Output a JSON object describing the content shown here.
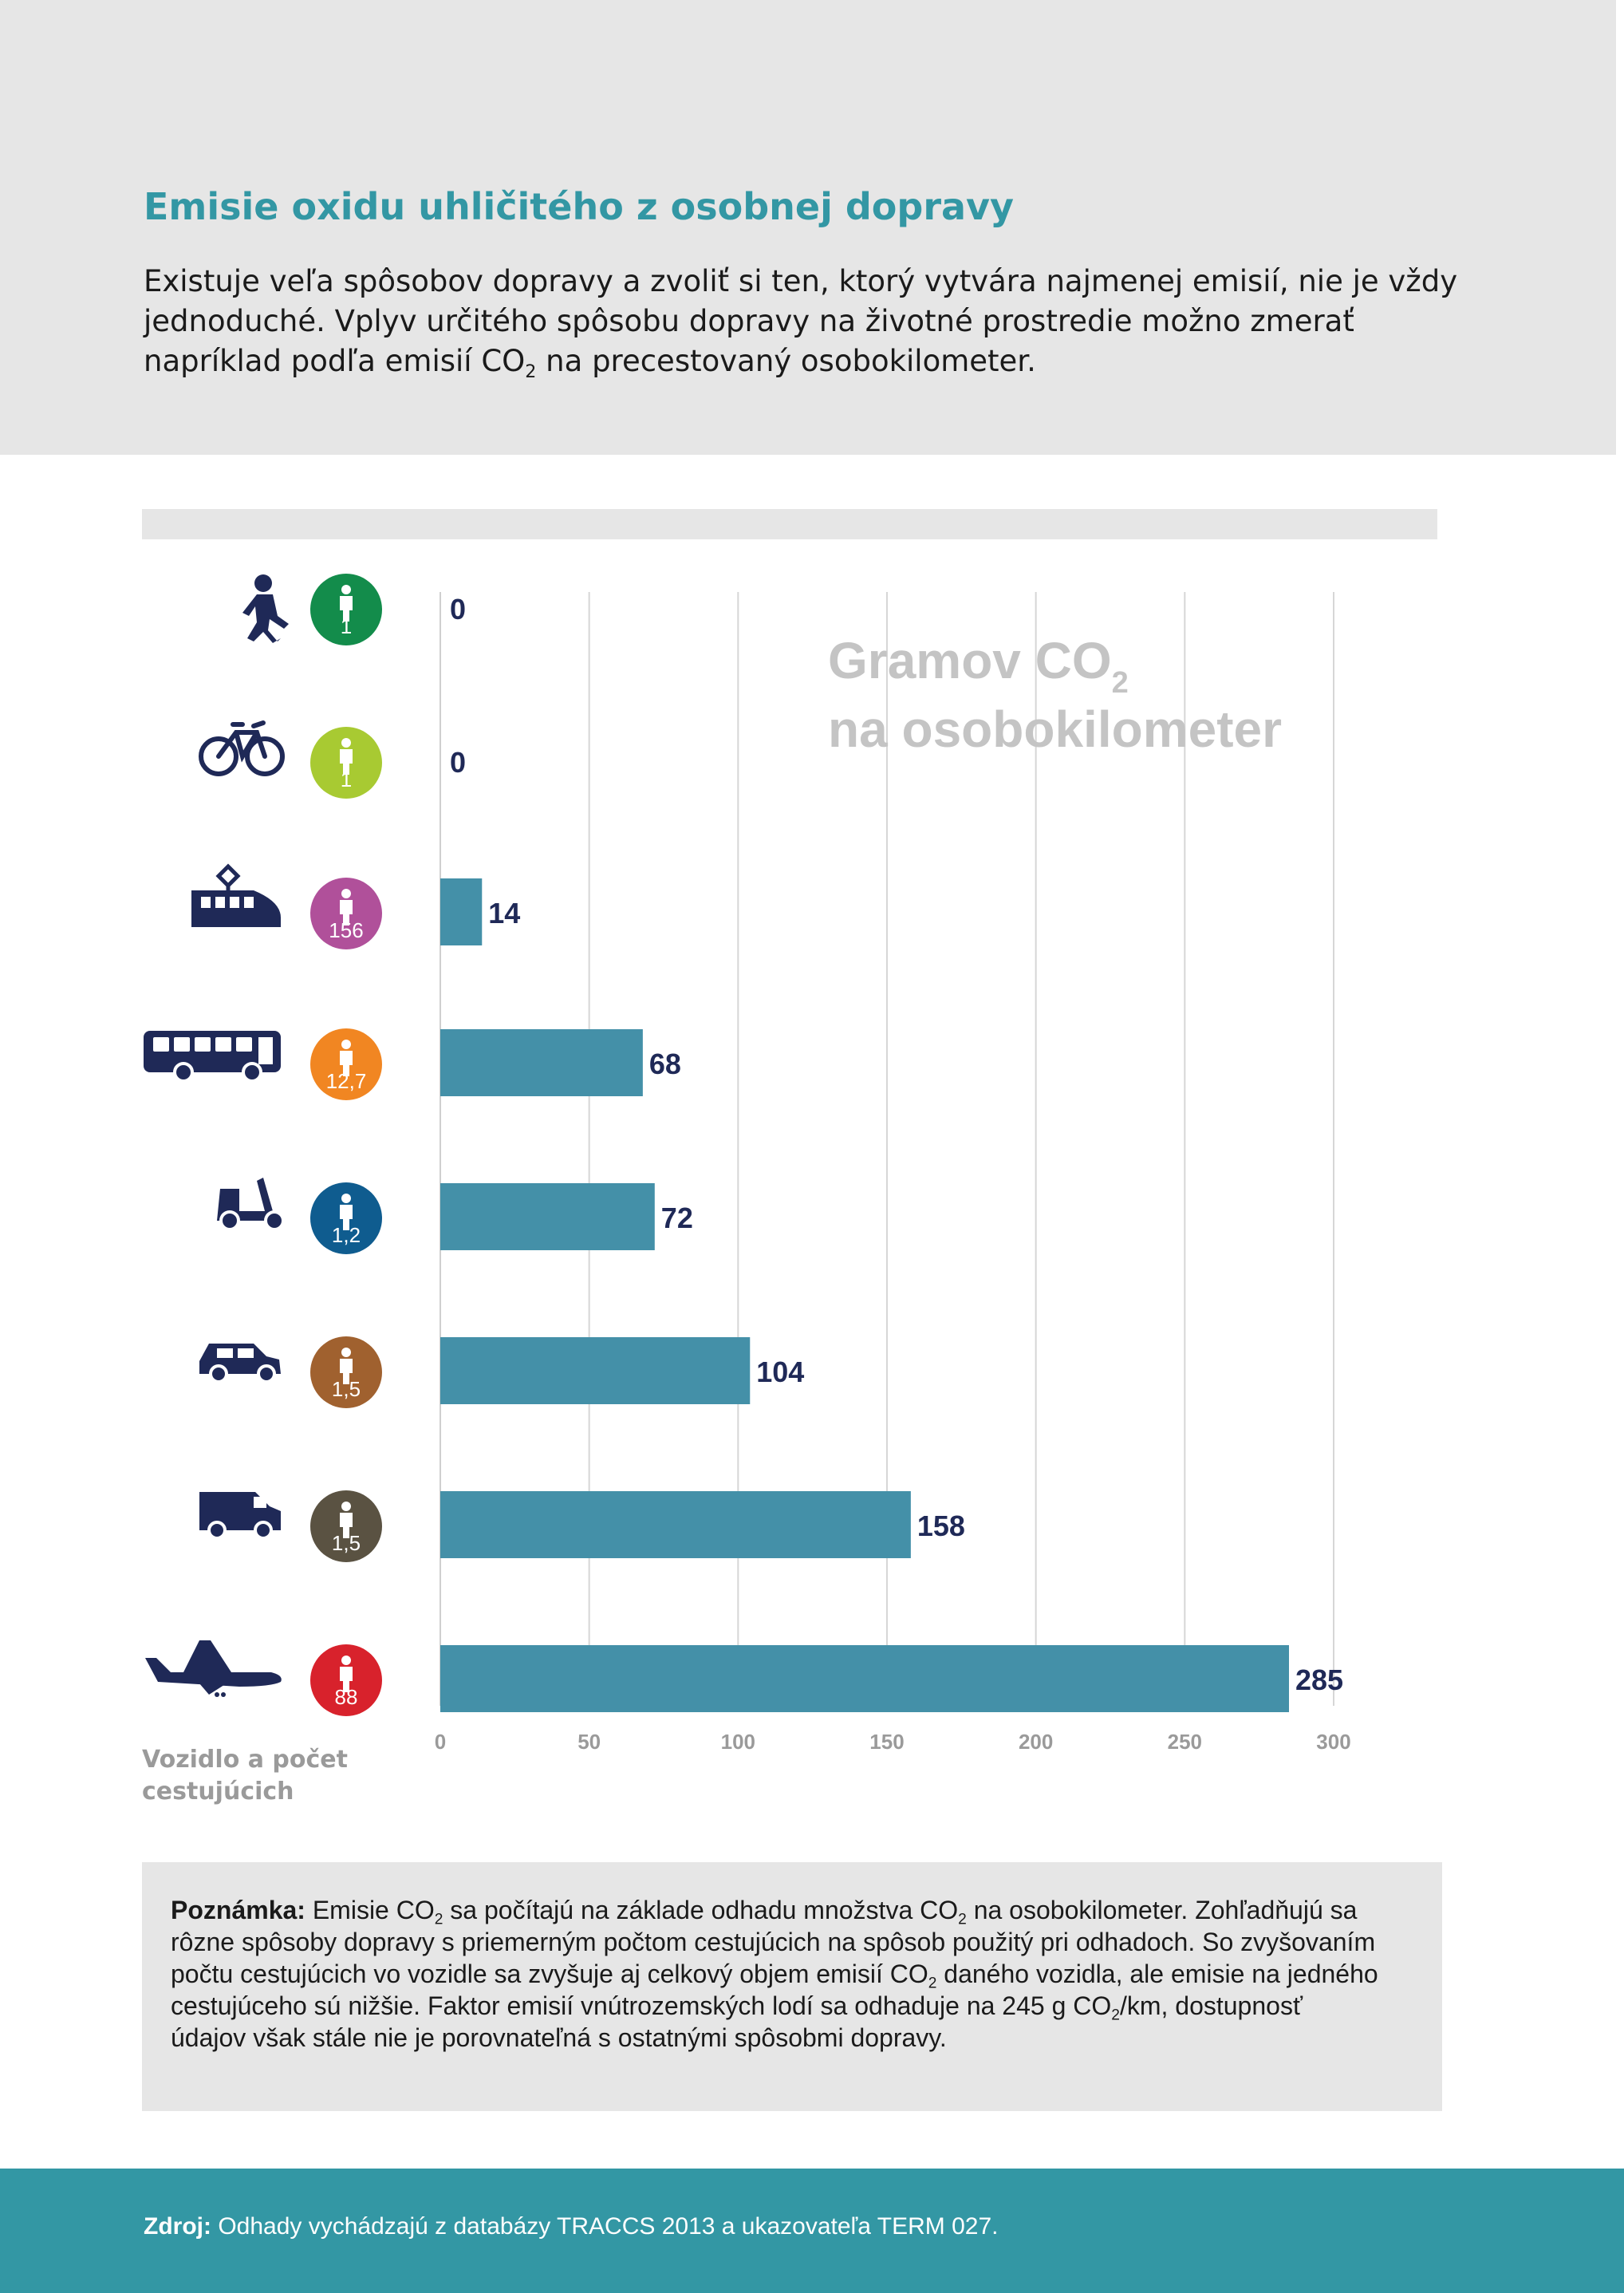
{
  "header": {
    "title": "Emisie oxidu uhličitého z osobnej dopravy",
    "intro_part1": "Existuje veľa spôsobov dopravy a zvoliť si ten, ktorý vytvára najmenej emisií, nie je vždy jednoduché. Vplyv určitého spôsobu dopravy na životné prostredie možno zmerať napríklad podľa emisií CO",
    "intro_sub": "2",
    "intro_part2": " na precestovaný osobokilometer."
  },
  "chart_data": {
    "type": "bar",
    "orientation": "horizontal",
    "title_line1": "Gramov CO",
    "title_sub": "2",
    "title_line2": "na osobokilometer",
    "xlabel": "",
    "ylabel": "Vozidlo a počet cestujúcich",
    "xlim": [
      0,
      300
    ],
    "xticks": [
      0,
      50,
      100,
      150,
      200,
      250,
      300
    ],
    "grid": true,
    "bar_color": "#4490a8",
    "categories": [
      {
        "icon": "walking-person-icon",
        "passengers": "1",
        "badge_color": "#138c4b",
        "value": 0
      },
      {
        "icon": "bicycle-icon",
        "passengers": "1",
        "badge_color": "#a8ca32",
        "value": 0
      },
      {
        "icon": "tram-icon",
        "passengers": "156",
        "badge_color": "#b0509a",
        "value": 14
      },
      {
        "icon": "bus-icon",
        "passengers": "12,7",
        "badge_color": "#f18622",
        "value": 68
      },
      {
        "icon": "scooter-icon",
        "passengers": "1,2",
        "badge_color": "#0f5c8f",
        "value": 72
      },
      {
        "icon": "car-icon",
        "passengers": "1,5",
        "badge_color": "#a0612f",
        "value": 104
      },
      {
        "icon": "van-icon",
        "passengers": "1,5",
        "badge_color": "#5a5242",
        "value": 158
      },
      {
        "icon": "airplane-icon",
        "passengers": "88",
        "badge_color": "#d8222c",
        "value": 285
      }
    ]
  },
  "axis_caption": "Vozidlo a počet cestujúcich",
  "note": {
    "label": "Poznámka:",
    "p1": " Emisie CO",
    "s1": "2",
    "p2": " sa počítajú na základe odhadu množstva CO",
    "s2": "2",
    "p3": " na osobokilometer. Zohľadňujú sa rôzne spôsoby dopravy s priemerným počtom cestujúcich na spôsob použitý pri odhadoch. So zvyšovaním počtu cestujúcich vo vozidle sa zvyšuje aj celkový objem emisií CO",
    "s3": "2",
    "p4": " daného vozidla, ale emisie na jedného cestujúceho sú nižšie. Faktor emisií vnútrozemských lodí sa odhaduje na 245 g CO",
    "s4": "2",
    "p5": "/km, dostupnosť údajov však stále nie je porovnateľná s ostatnými spôsobmi dopravy."
  },
  "footer": {
    "label": "Zdroj:",
    "text": " Odhady vychádzajú z databázy TRACCS 2013 a ukazovateľa TERM 027."
  },
  "colors": {
    "accent": "#3397a4",
    "icon": "#1f2957",
    "panel": "#e6e6e6",
    "value_label": "#1f2957",
    "tick_label": "#9a9a9a",
    "title_gray": "#c4c4c4"
  }
}
